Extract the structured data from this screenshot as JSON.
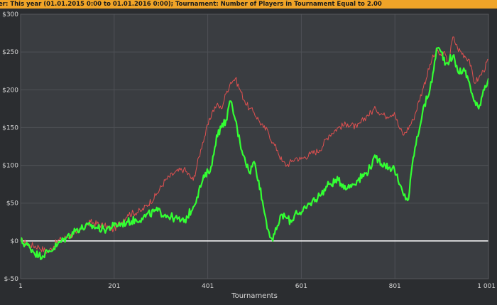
{
  "filter_text": "er: This year (01.01.2015 0:00 to 01.01.2016 0:00); Tournament: Number of Players in Tournament Equal to 2.00",
  "colors": {
    "background": "#3a3d41",
    "grid": "#4e5156",
    "zero_line": "#ffffff",
    "filter_bar": "#f0a428",
    "winnings_line": "#33ff33",
    "ev_line": "#e05050"
  },
  "chart_data": {
    "type": "line",
    "title": "",
    "xlabel": "Tournaments",
    "ylabel": "",
    "xlim": [
      1,
      1001
    ],
    "ylim": [
      -50,
      300
    ],
    "x_ticks": [
      "1",
      "201",
      "401",
      "601",
      "801",
      "1 001"
    ],
    "y_ticks": [
      "$300",
      "$250",
      "$200",
      "$150",
      "$100",
      "$50",
      "$0",
      "$-50"
    ],
    "grid": true,
    "series": [
      {
        "color": "#e05050",
        "points": [
          [
            1,
            0
          ],
          [
            20,
            -5
          ],
          [
            40,
            -8
          ],
          [
            60,
            -15
          ],
          [
            80,
            0
          ],
          [
            100,
            5
          ],
          [
            120,
            10
          ],
          [
            150,
            25
          ],
          [
            180,
            20
          ],
          [
            200,
            15
          ],
          [
            230,
            35
          ],
          [
            260,
            40
          ],
          [
            290,
            60
          ],
          [
            310,
            80
          ],
          [
            330,
            90
          ],
          [
            350,
            95
          ],
          [
            370,
            80
          ],
          [
            390,
            130
          ],
          [
            410,
            170
          ],
          [
            420,
            180
          ],
          [
            430,
            175
          ],
          [
            440,
            195
          ],
          [
            450,
            210
          ],
          [
            460,
            215
          ],
          [
            470,
            200
          ],
          [
            480,
            185
          ],
          [
            490,
            175
          ],
          [
            500,
            170
          ],
          [
            510,
            160
          ],
          [
            520,
            150
          ],
          [
            530,
            145
          ],
          [
            540,
            130
          ],
          [
            550,
            120
          ],
          [
            560,
            105
          ],
          [
            570,
            100
          ],
          [
            580,
            105
          ],
          [
            590,
            110
          ],
          [
            600,
            108
          ],
          [
            620,
            115
          ],
          [
            640,
            120
          ],
          [
            660,
            140
          ],
          [
            680,
            150
          ],
          [
            700,
            155
          ],
          [
            720,
            150
          ],
          [
            740,
            165
          ],
          [
            760,
            175
          ],
          [
            780,
            165
          ],
          [
            800,
            170
          ],
          [
            810,
            150
          ],
          [
            820,
            140
          ],
          [
            840,
            160
          ],
          [
            860,
            200
          ],
          [
            880,
            240
          ],
          [
            890,
            250
          ],
          [
            900,
            245
          ],
          [
            905,
            250
          ],
          [
            915,
            235
          ],
          [
            925,
            270
          ],
          [
            935,
            255
          ],
          [
            950,
            245
          ],
          [
            960,
            240
          ],
          [
            970,
            210
          ],
          [
            980,
            215
          ],
          [
            990,
            225
          ],
          [
            1001,
            240
          ]
        ]
      },
      {
        "color": "#33ff33",
        "points": [
          [
            1,
            0
          ],
          [
            20,
            -8
          ],
          [
            40,
            -20
          ],
          [
            60,
            -15
          ],
          [
            80,
            -5
          ],
          [
            100,
            5
          ],
          [
            120,
            15
          ],
          [
            150,
            20
          ],
          [
            180,
            15
          ],
          [
            200,
            20
          ],
          [
            230,
            25
          ],
          [
            260,
            30
          ],
          [
            290,
            40
          ],
          [
            310,
            35
          ],
          [
            330,
            30
          ],
          [
            350,
            25
          ],
          [
            370,
            45
          ],
          [
            390,
            80
          ],
          [
            410,
            100
          ],
          [
            420,
            140
          ],
          [
            430,
            150
          ],
          [
            440,
            160
          ],
          [
            450,
            185
          ],
          [
            460,
            160
          ],
          [
            470,
            130
          ],
          [
            480,
            110
          ],
          [
            490,
            90
          ],
          [
            500,
            105
          ],
          [
            510,
            80
          ],
          [
            520,
            45
          ],
          [
            530,
            15
          ],
          [
            540,
            0
          ],
          [
            550,
            20
          ],
          [
            560,
            35
          ],
          [
            570,
            30
          ],
          [
            580,
            25
          ],
          [
            590,
            40
          ],
          [
            600,
            35
          ],
          [
            620,
            50
          ],
          [
            640,
            60
          ],
          [
            660,
            75
          ],
          [
            680,
            80
          ],
          [
            700,
            70
          ],
          [
            720,
            80
          ],
          [
            740,
            90
          ],
          [
            760,
            110
          ],
          [
            780,
            100
          ],
          [
            800,
            95
          ],
          [
            810,
            75
          ],
          [
            820,
            60
          ],
          [
            830,
            55
          ],
          [
            840,
            110
          ],
          [
            860,
            170
          ],
          [
            880,
            210
          ],
          [
            890,
            255
          ],
          [
            900,
            250
          ],
          [
            910,
            235
          ],
          [
            925,
            245
          ],
          [
            935,
            225
          ],
          [
            950,
            225
          ],
          [
            960,
            210
          ],
          [
            970,
            185
          ],
          [
            980,
            175
          ],
          [
            990,
            200
          ],
          [
            1001,
            215
          ]
        ]
      }
    ]
  }
}
